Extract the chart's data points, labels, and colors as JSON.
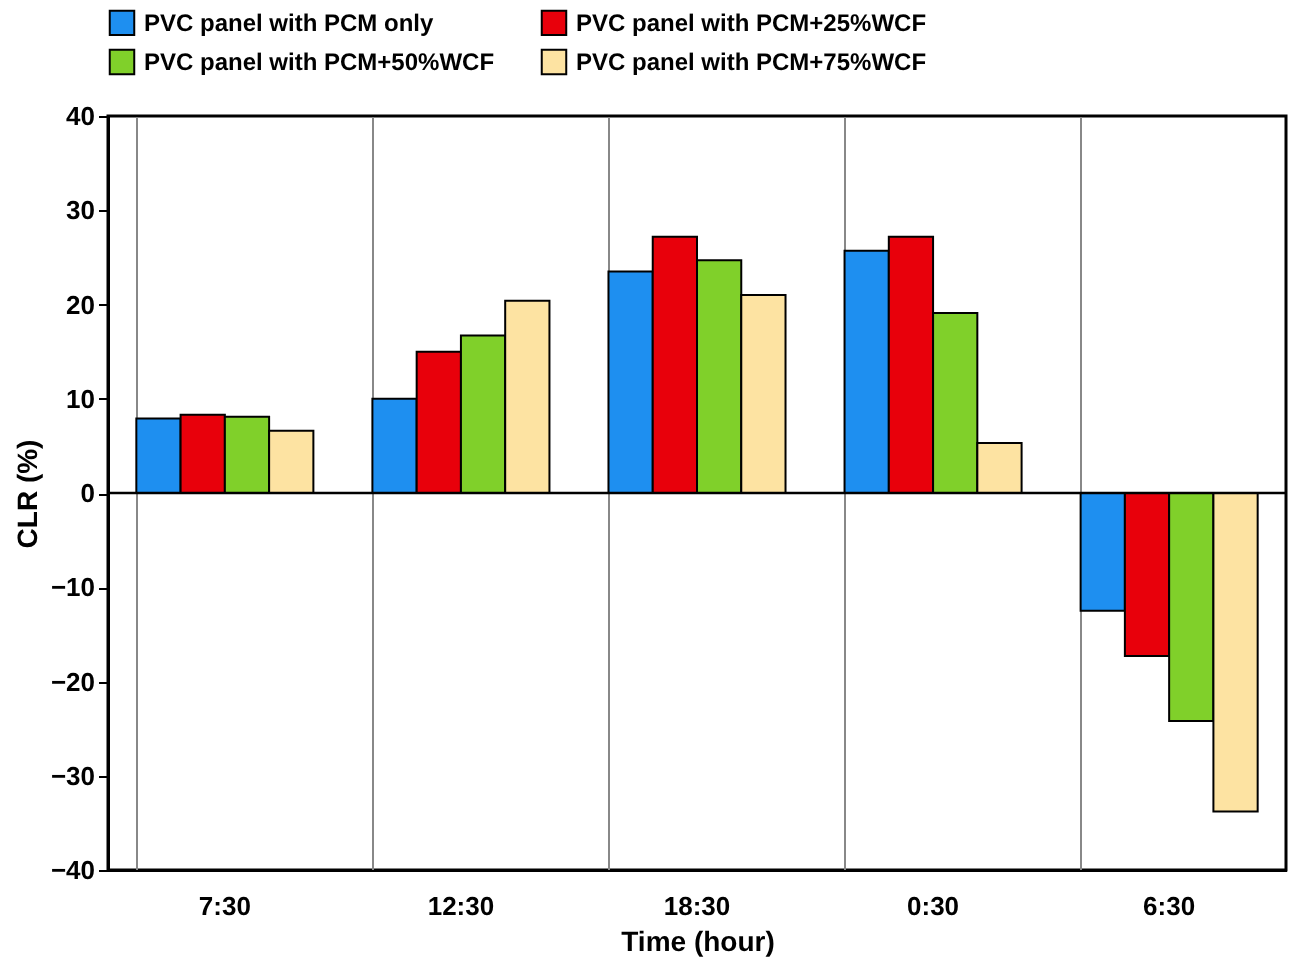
{
  "chart_data": {
    "type": "bar",
    "xlabel": "Time  (hour)",
    "ylabel": "CLR (%)",
    "categories": [
      "7:30",
      "12:30",
      "18:30",
      "0:30",
      "6:30"
    ],
    "series": [
      {
        "name": "PVC panel with PCM only",
        "color": "#1e8ff0",
        "values": [
          7.9,
          10,
          23.5,
          25.7,
          -12.5
        ]
      },
      {
        "name": "PVC panel with PCM+25%WCF",
        "color": "#e8000b",
        "values": [
          8.3,
          15,
          27.2,
          27.2,
          -17.3
        ]
      },
      {
        "name": "PVC panel with PCM+50%WCF",
        "color": "#80d02a",
        "values": [
          8.1,
          16.7,
          24.7,
          19.1,
          -24.2
        ]
      },
      {
        "name": "PVC panel with PCM+75%WCF",
        "color": "#fde3a2",
        "values": [
          6.6,
          20.4,
          21,
          5.3,
          -33.8
        ]
      }
    ],
    "ylim": [
      -40,
      40
    ],
    "yticks": [
      -40,
      -30,
      -20,
      -10,
      0,
      10,
      20,
      30,
      40
    ],
    "grid": "x",
    "legend": "top",
    "ref_lines": [
      {
        "axis": "y",
        "value": 0
      }
    ]
  }
}
